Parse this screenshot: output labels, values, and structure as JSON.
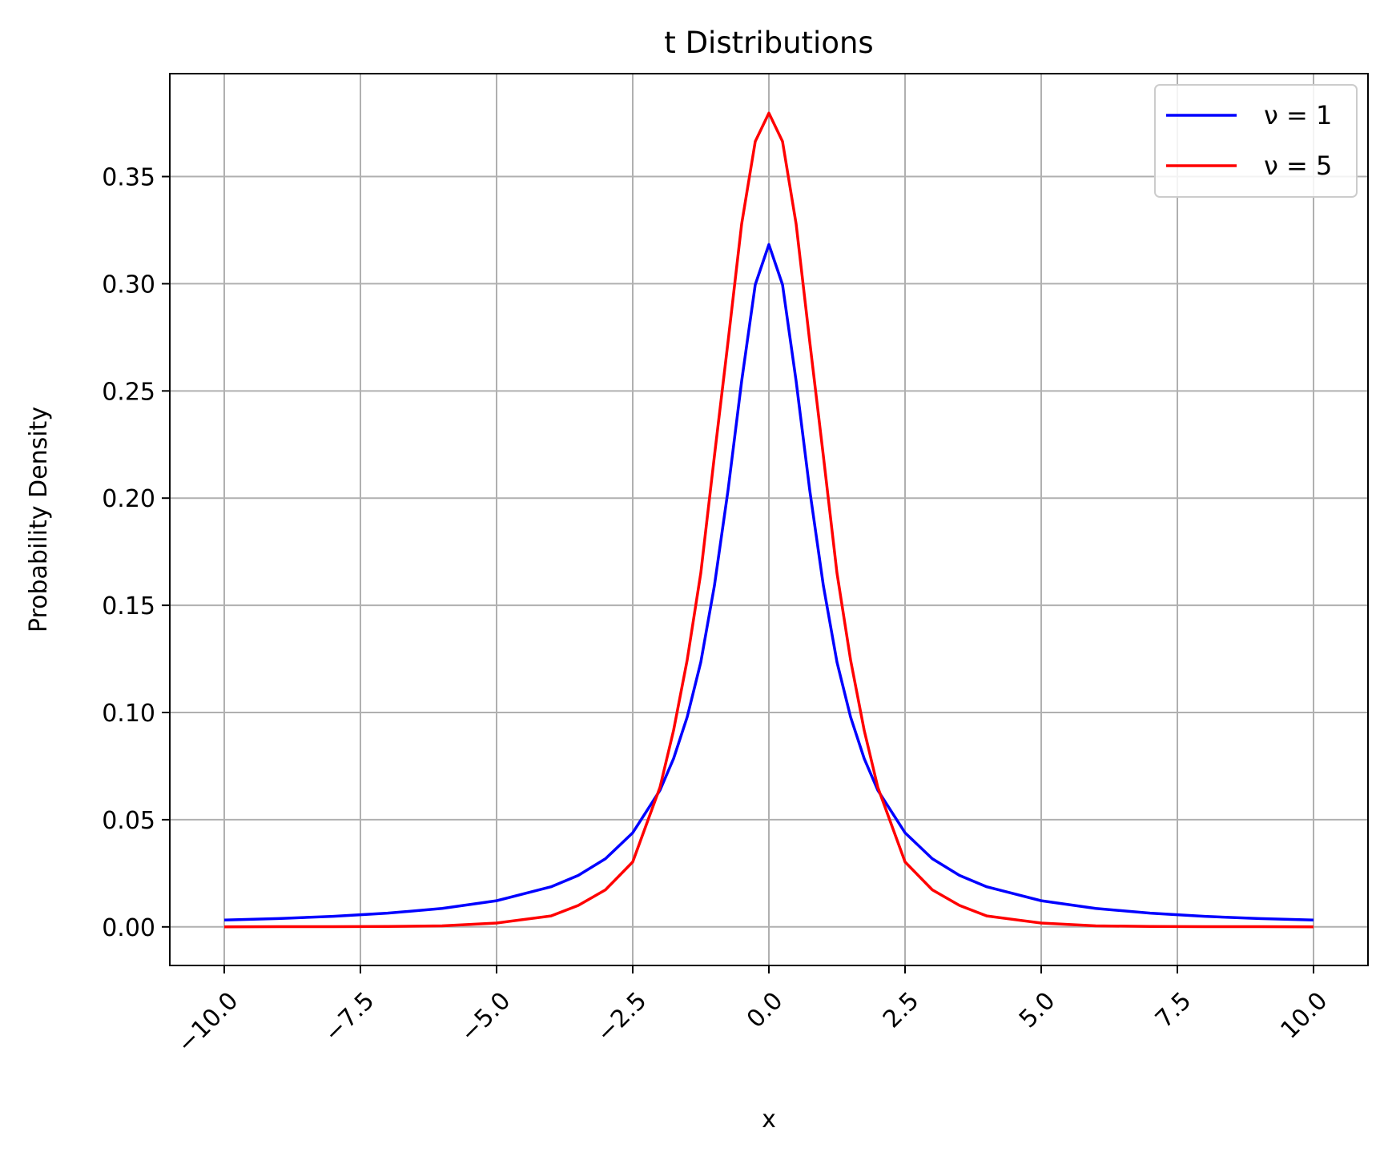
{
  "chart_data": {
    "type": "line",
    "title": "t Distributions",
    "xlabel": "x",
    "ylabel": "Probability Density",
    "xlim": [
      -11,
      11
    ],
    "ylim": [
      -0.018,
      0.398
    ],
    "x_ticks": [
      -10,
      -7.5,
      -5,
      -2.5,
      0,
      2.5,
      5,
      7.5,
      10
    ],
    "x_tick_labels": [
      "−10.0",
      "−7.5",
      "−5.0",
      "−2.5",
      "0.0",
      "2.5",
      "5.0",
      "7.5",
      "10.0"
    ],
    "y_ticks": [
      0,
      0.05,
      0.1,
      0.15,
      0.2,
      0.25,
      0.3,
      0.35
    ],
    "y_tick_labels": [
      "0.00",
      "0.05",
      "0.10",
      "0.15",
      "0.20",
      "0.25",
      "0.30",
      "0.35"
    ],
    "grid": true,
    "legend_position": "top-right",
    "x_range": [
      -10,
      10
    ],
    "series": [
      {
        "name": "ν = 1",
        "color": "#0000ff",
        "x": [
          -10,
          -9,
          -8,
          -7,
          -6,
          -5,
          -4,
          -3.5,
          -3,
          -2.5,
          -2,
          -1.75,
          -1.5,
          -1.25,
          -1,
          -0.75,
          -0.5,
          -0.25,
          0,
          0.25,
          0.5,
          0.75,
          1,
          1.25,
          1.5,
          1.75,
          2,
          2.5,
          3,
          3.5,
          4,
          5,
          6,
          7,
          8,
          9,
          10
        ],
        "y": [
          0.0032,
          0.0039,
          0.0049,
          0.0064,
          0.0086,
          0.0122,
          0.0187,
          0.024,
          0.0318,
          0.0439,
          0.0637,
          0.0785,
          0.0979,
          0.1235,
          0.1592,
          0.2037,
          0.2546,
          0.2996,
          0.3183,
          0.2996,
          0.2546,
          0.2037,
          0.1592,
          0.1235,
          0.0979,
          0.0785,
          0.0637,
          0.0439,
          0.0318,
          0.024,
          0.0187,
          0.0122,
          0.0086,
          0.0064,
          0.0049,
          0.0039,
          0.0032
        ]
      },
      {
        "name": "ν = 5",
        "color": "#ff0000",
        "x": [
          -10,
          -9,
          -8,
          -7,
          -6,
          -5,
          -4,
          -3.5,
          -3,
          -2.5,
          -2,
          -1.75,
          -1.5,
          -1.25,
          -1,
          -0.75,
          -0.5,
          -0.25,
          0,
          0.25,
          0.5,
          0.75,
          1,
          1.25,
          1.5,
          1.75,
          2,
          2.5,
          3,
          3.5,
          4,
          5,
          6,
          7,
          8,
          9,
          10
        ],
        "y": [
          0.0,
          0.0001,
          0.0001,
          0.0002,
          0.0005,
          0.0018,
          0.0051,
          0.01,
          0.0173,
          0.0303,
          0.0651,
          0.0917,
          0.1245,
          0.1651,
          0.2197,
          0.273,
          0.3279,
          0.3664,
          0.3796,
          0.3664,
          0.3279,
          0.273,
          0.2197,
          0.1651,
          0.1245,
          0.0917,
          0.0651,
          0.0303,
          0.0173,
          0.01,
          0.0051,
          0.0018,
          0.0005,
          0.0002,
          0.0001,
          0.0001,
          0.0
        ]
      }
    ]
  }
}
